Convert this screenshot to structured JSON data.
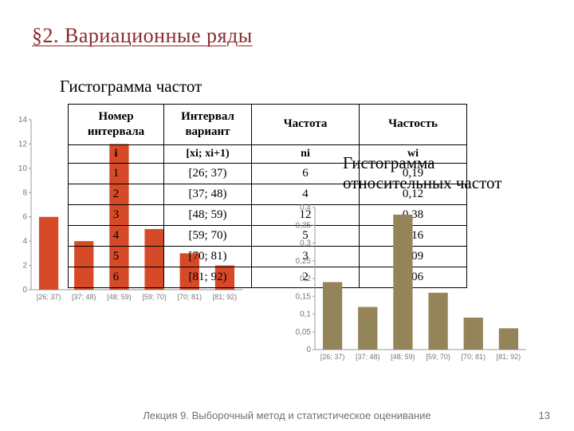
{
  "heading": "§2. Вариационные ряды",
  "subtitle_left": "Гистограмма частот",
  "subtitle_right_line1": "Гистограмма",
  "subtitle_right_line2": "относительных частот",
  "footer": "Лекция 9. Выборочный метод и статистическое оценивание",
  "page_number": "13",
  "table": {
    "headers": [
      "Номер интервала",
      "Интервал вариант",
      "Частота",
      "Частость"
    ],
    "subheaders": [
      "i",
      "[xi; xi+1)",
      "ni",
      "wi"
    ],
    "rows": [
      [
        "1",
        "[26; 37)",
        "6",
        "0,19"
      ],
      [
        "2",
        "[37; 48)",
        "4",
        "0,12"
      ],
      [
        "3",
        "[48; 59)",
        "12",
        "0,38"
      ],
      [
        "4",
        "[59; 70)",
        "5",
        "0,16"
      ],
      [
        "5",
        "[70; 81)",
        "3",
        "0,09"
      ],
      [
        "6",
        "[81; 92)",
        "2",
        "0,06"
      ]
    ]
  },
  "chart_left": {
    "type": "bar",
    "categories": [
      "[26; 37)",
      "[37; 48)",
      "[48; 59)",
      "[59; 70)",
      "[70; 81)",
      "[81; 92)"
    ],
    "values": [
      6,
      4,
      12,
      5,
      3,
      2
    ],
    "bar_color": "#d64a28",
    "ylim": [
      0,
      14
    ],
    "ytick_step": 2,
    "axis_color": "#999999",
    "bar_width": 0.55,
    "label_fontsize": 10
  },
  "chart_right": {
    "type": "bar",
    "categories": [
      "[26; 37)",
      "[37; 48)",
      "[48; 59)",
      "[59; 70)",
      "[70; 81)",
      "[81; 92)"
    ],
    "values": [
      0.19,
      0.12,
      0.38,
      0.16,
      0.09,
      0.06
    ],
    "bar_color": "#94845a",
    "ylim": [
      0,
      0.4
    ],
    "ytick_step": 0.05,
    "axis_color": "#999999",
    "bar_width": 0.55,
    "label_fontsize": 10
  },
  "colors": {
    "heading": "#8b2c2c",
    "footer": "#707070",
    "axis": "#999999",
    "bar_left": "#d64a28",
    "bar_right": "#94845a",
    "background": "#ffffff"
  }
}
